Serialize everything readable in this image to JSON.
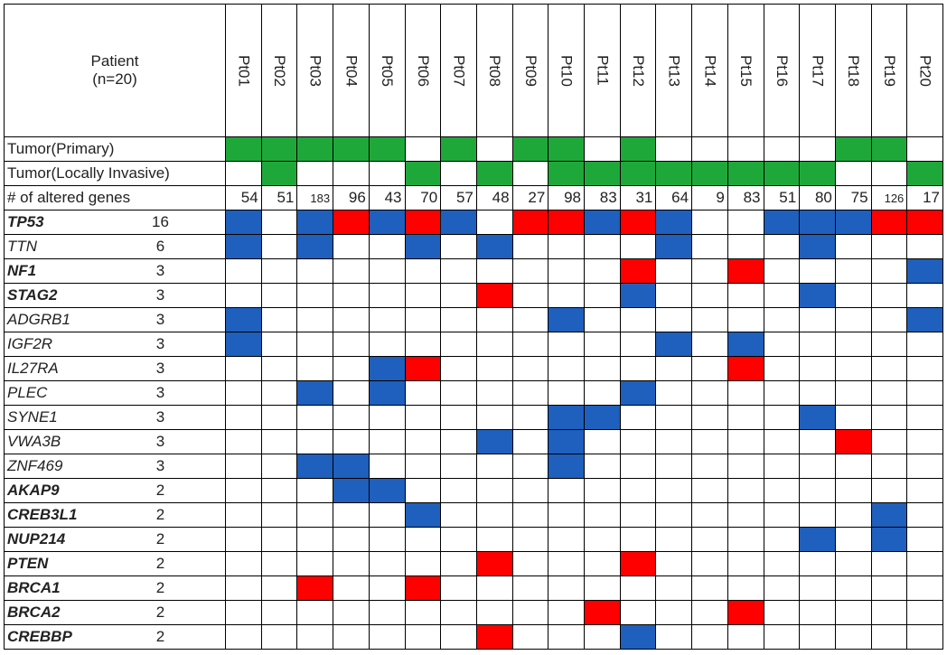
{
  "header": {
    "patient_label": "Patient",
    "n_label": "(n=20)"
  },
  "patients": [
    "Pt01",
    "Pt02",
    "Pt03",
    "Pt04",
    "Pt05",
    "Pt06",
    "Pt07",
    "Pt08",
    "Pt09",
    "Pt10",
    "Pt11",
    "Pt12",
    "Pt13",
    "Pt14",
    "Pt15",
    "Pt16",
    "Pt17",
    "Pt18",
    "Pt19",
    "Pt20"
  ],
  "row_labels": {
    "primary": "Tumor(Primary)",
    "invasive": "Tumor(Locally Invasive)",
    "altered": "# of altered genes"
  },
  "tumor_primary": [
    true,
    true,
    true,
    true,
    true,
    false,
    true,
    false,
    true,
    true,
    false,
    true,
    false,
    false,
    false,
    false,
    false,
    true,
    true,
    false
  ],
  "tumor_invasive": [
    false,
    true,
    false,
    false,
    false,
    true,
    false,
    true,
    false,
    true,
    true,
    true,
    true,
    true,
    true,
    true,
    true,
    false,
    false,
    true
  ],
  "altered_genes": [
    54,
    51,
    183,
    96,
    43,
    70,
    57,
    48,
    27,
    98,
    83,
    31,
    64,
    9,
    83,
    51,
    80,
    75,
    126,
    17
  ],
  "colors": {
    "tumor": "#1fa83a",
    "blue": "#1f5fbd",
    "red": "#ff0000"
  },
  "genes": [
    {
      "name": "TP53",
      "count": 16,
      "bold": true,
      "cells": [
        "blue",
        null,
        "blue",
        "red",
        "blue",
        "red",
        "blue",
        null,
        "red",
        "red",
        "blue",
        "red",
        "blue",
        null,
        null,
        "blue",
        "blue",
        "blue",
        "red",
        "red"
      ]
    },
    {
      "name": "TTN",
      "count": 6,
      "bold": false,
      "cells": [
        "blue",
        null,
        "blue",
        null,
        null,
        "blue",
        null,
        "blue",
        null,
        null,
        null,
        null,
        "blue",
        null,
        null,
        null,
        "blue",
        null,
        null,
        null
      ]
    },
    {
      "name": "NF1",
      "count": 3,
      "bold": true,
      "cells": [
        null,
        null,
        null,
        null,
        null,
        null,
        null,
        null,
        null,
        null,
        null,
        "red",
        null,
        null,
        "red",
        null,
        null,
        null,
        null,
        "blue"
      ]
    },
    {
      "name": "STAG2",
      "count": 3,
      "bold": true,
      "cells": [
        null,
        null,
        null,
        null,
        null,
        null,
        null,
        "red",
        null,
        null,
        null,
        "blue",
        null,
        null,
        null,
        null,
        "blue",
        null,
        null,
        null
      ]
    },
    {
      "name": "ADGRB1",
      "count": 3,
      "bold": false,
      "cells": [
        "blue",
        null,
        null,
        null,
        null,
        null,
        null,
        null,
        null,
        "blue",
        null,
        null,
        null,
        null,
        null,
        null,
        null,
        null,
        null,
        "blue"
      ]
    },
    {
      "name": "IGF2R",
      "count": 3,
      "bold": false,
      "cells": [
        "blue",
        null,
        null,
        null,
        null,
        null,
        null,
        null,
        null,
        null,
        null,
        null,
        "blue",
        null,
        "blue",
        null,
        null,
        null,
        null,
        null
      ]
    },
    {
      "name": "IL27RA",
      "count": 3,
      "bold": false,
      "cells": [
        null,
        null,
        null,
        null,
        "blue",
        "red",
        null,
        null,
        null,
        null,
        null,
        null,
        null,
        null,
        "red",
        null,
        null,
        null,
        null,
        null
      ]
    },
    {
      "name": "PLEC",
      "count": 3,
      "bold": false,
      "cells": [
        null,
        null,
        "blue",
        null,
        "blue",
        null,
        null,
        null,
        null,
        null,
        null,
        "blue",
        null,
        null,
        null,
        null,
        null,
        null,
        null,
        null
      ]
    },
    {
      "name": "SYNE1",
      "count": 3,
      "bold": false,
      "cells": [
        null,
        null,
        null,
        null,
        null,
        null,
        null,
        null,
        null,
        "blue",
        "blue",
        null,
        null,
        null,
        null,
        null,
        "blue",
        null,
        null,
        null
      ]
    },
    {
      "name": "VWA3B",
      "count": 3,
      "bold": false,
      "cells": [
        null,
        null,
        null,
        null,
        null,
        null,
        null,
        "blue",
        null,
        "blue",
        null,
        null,
        null,
        null,
        null,
        null,
        null,
        "red",
        null,
        null
      ]
    },
    {
      "name": "ZNF469",
      "count": 3,
      "bold": false,
      "cells": [
        null,
        null,
        "blue",
        "blue",
        null,
        null,
        null,
        null,
        null,
        "blue",
        null,
        null,
        null,
        null,
        null,
        null,
        null,
        null,
        null,
        null
      ]
    },
    {
      "name": "AKAP9",
      "count": 2,
      "bold": true,
      "cells": [
        null,
        null,
        null,
        "blue",
        "blue",
        null,
        null,
        null,
        null,
        null,
        null,
        null,
        null,
        null,
        null,
        null,
        null,
        null,
        null,
        null
      ]
    },
    {
      "name": "CREB3L1",
      "count": 2,
      "bold": true,
      "cells": [
        null,
        null,
        null,
        null,
        null,
        "blue",
        null,
        null,
        null,
        null,
        null,
        null,
        null,
        null,
        null,
        null,
        null,
        null,
        "blue",
        null
      ]
    },
    {
      "name": "NUP214",
      "count": 2,
      "bold": true,
      "cells": [
        null,
        null,
        null,
        null,
        null,
        null,
        null,
        null,
        null,
        null,
        null,
        null,
        null,
        null,
        null,
        null,
        "blue",
        null,
        "blue",
        null
      ]
    },
    {
      "name": "PTEN",
      "count": 2,
      "bold": true,
      "cells": [
        null,
        null,
        null,
        null,
        null,
        null,
        null,
        "red",
        null,
        null,
        null,
        "red",
        null,
        null,
        null,
        null,
        null,
        null,
        null,
        null
      ]
    },
    {
      "name": "BRCA1",
      "count": 2,
      "bold": true,
      "cells": [
        null,
        null,
        "red",
        null,
        null,
        "red",
        null,
        null,
        null,
        null,
        null,
        null,
        null,
        null,
        null,
        null,
        null,
        null,
        null,
        null
      ]
    },
    {
      "name": "BRCA2",
      "count": 2,
      "bold": true,
      "cells": [
        null,
        null,
        null,
        null,
        null,
        null,
        null,
        null,
        null,
        null,
        "red",
        null,
        null,
        null,
        "red",
        null,
        null,
        null,
        null,
        null
      ]
    },
    {
      "name": "CREBBP",
      "count": 2,
      "bold": true,
      "cells": [
        null,
        null,
        null,
        null,
        null,
        null,
        null,
        "red",
        null,
        null,
        null,
        "blue",
        null,
        null,
        null,
        null,
        null,
        null,
        null,
        null
      ]
    }
  ]
}
